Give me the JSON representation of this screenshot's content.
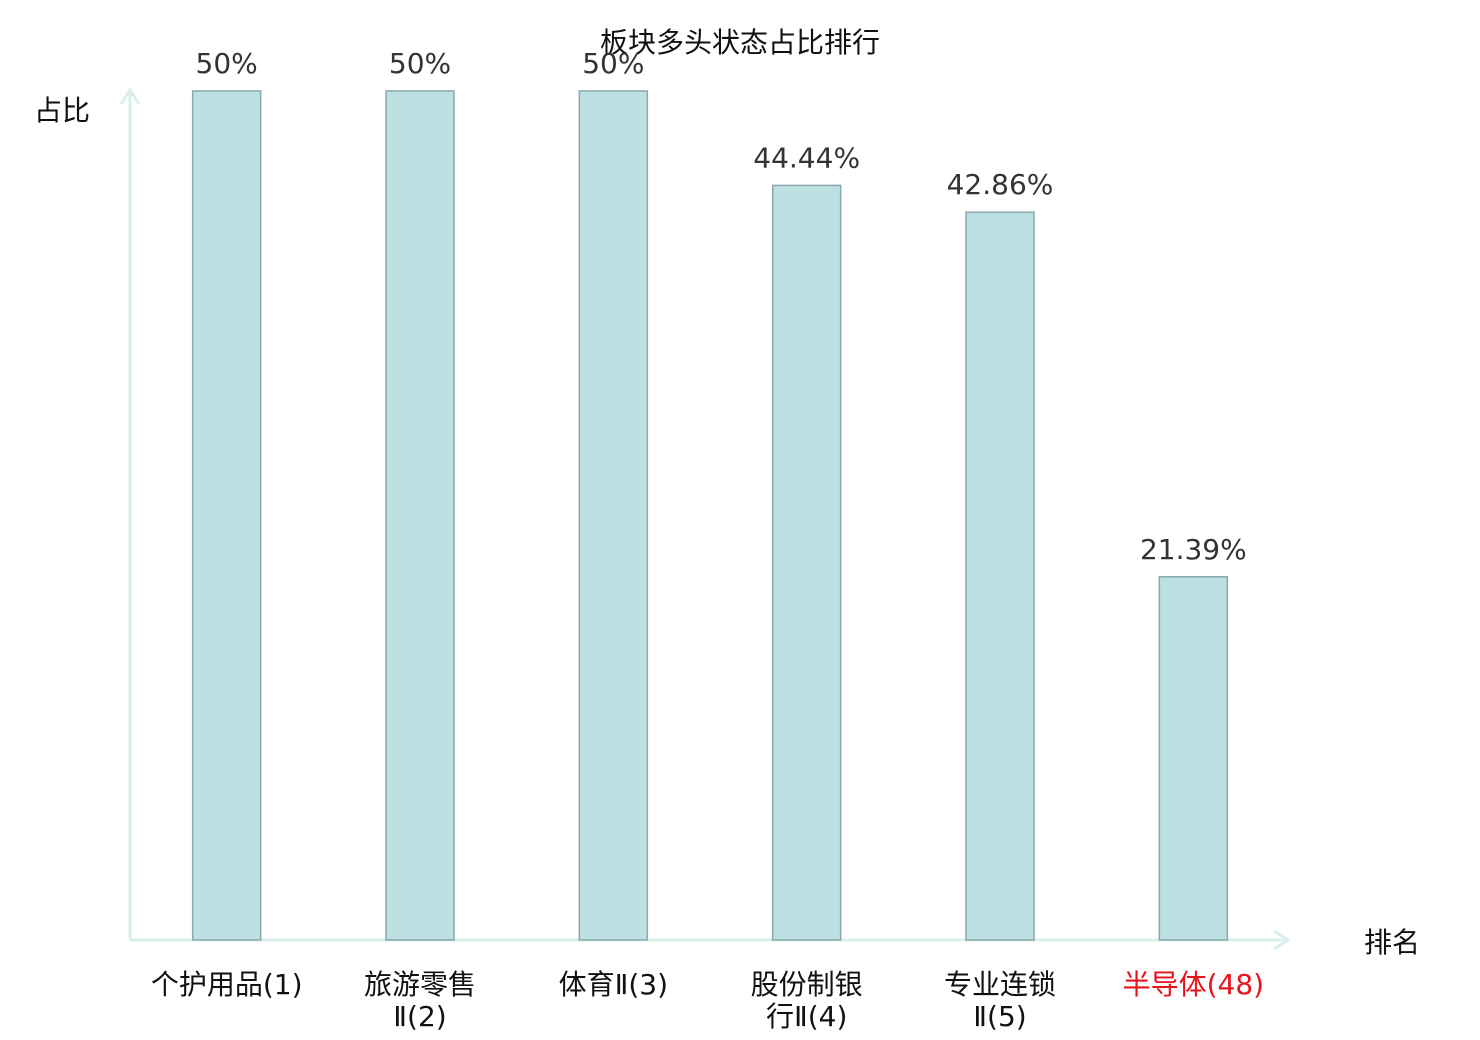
{
  "chart_data": {
    "type": "bar",
    "title": "板块多头状态占比排行",
    "y_label": "占比",
    "x_label": "排名",
    "categories": [
      "个护用品(1)",
      "旅游零售Ⅱ(2)",
      "体育Ⅱ(3)",
      "股份制银行Ⅱ(4)",
      "专业连锁Ⅱ(5)",
      "半导体(48)"
    ],
    "category_colors": [
      "#111111",
      "#111111",
      "#111111",
      "#111111",
      "#111111",
      "#e8141b"
    ],
    "values": [
      50,
      50,
      50,
      44.44,
      42.86,
      21.39
    ],
    "value_labels": [
      "50%",
      "50%",
      "50%",
      "44.44%",
      "42.86%",
      "21.39%"
    ],
    "color": "#bde0e3",
    "edge_color": "#8aa8ab",
    "ylim": [
      0,
      50
    ],
    "grid": false
  }
}
